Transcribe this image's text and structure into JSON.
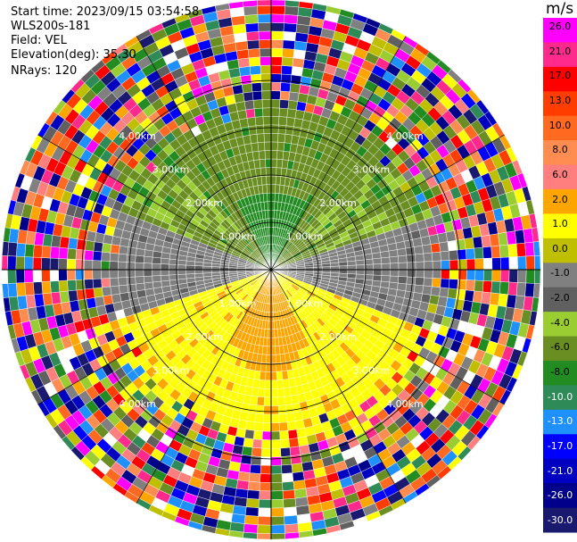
{
  "header": {
    "start_time": "Start time: 2023/09/15 03:54:58",
    "instrument": "WLS200s-181",
    "field": "Field: VEL",
    "elevation": "Elevation(deg): 35.30",
    "nrays": "NRays: 120"
  },
  "colorbar": {
    "unit": "m/s",
    "ticks": [
      "26.0",
      "21.0",
      "17.0",
      "13.0",
      "10.0",
      "8.0",
      "6.0",
      "2.0",
      "1.0",
      "0.0",
      "-1.0",
      "-2.0",
      "-4.0",
      "-6.0",
      "-8.0",
      "-10.0",
      "-13.0",
      "-17.0",
      "-21.0",
      "-26.0",
      "-30.0"
    ],
    "colors": [
      "#ff00ff",
      "#ff2a8c",
      "#ff0000",
      "#ff3d00",
      "#ff6a20",
      "#ff8c50",
      "#ff7f7f",
      "#ffa500",
      "#ffff00",
      "#bfbf00",
      "#808080",
      "#606060",
      "#9acd32",
      "#6b8e23",
      "#228b22",
      "#2e8b57",
      "#1e90ff",
      "#0000ff",
      "#0000c0",
      "#00008b",
      "#191970"
    ]
  },
  "chart_data": {
    "type": "ppi",
    "field": "VEL",
    "unit": "m/s",
    "nrays": 120,
    "elevation_deg": 35.3,
    "range_rings_km": [
      1.0,
      2.0,
      3.0,
      4.0
    ],
    "range_ring_labels": [
      "1.00km",
      "2.00km",
      "3.00km",
      "4.00km"
    ],
    "max_range_km": 5.7,
    "sectors": [
      {
        "name": "north",
        "azimuth_from_deg": -70,
        "azimuth_to_deg": 70,
        "velocity_ms": -4.0,
        "color_name": "olive green"
      },
      {
        "name": "north-core",
        "azimuth_from_deg": -25,
        "azimuth_to_deg": 25,
        "velocity_ms": -6.0,
        "color_name": "green"
      },
      {
        "name": "east-west",
        "azimuth_from_deg": 70,
        "azimuth_to_deg": 110,
        "velocity_ms": -0.5,
        "color_name": "gray"
      },
      {
        "name": "south",
        "azimuth_from_deg": 110,
        "azimuth_to_deg": 250,
        "velocity_ms": 1.5,
        "color_name": "yellow"
      },
      {
        "name": "south-core",
        "azimuth_from_deg": 150,
        "azimuth_to_deg": 210,
        "velocity_ms": 4.0,
        "color_name": "orange"
      }
    ],
    "noise_ring_start_km": 3.5
  }
}
